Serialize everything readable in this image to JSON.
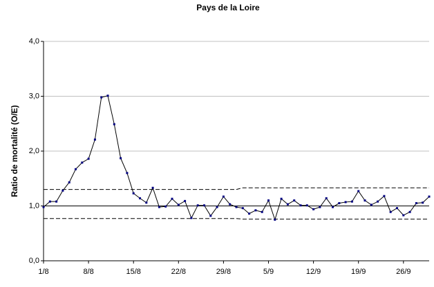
{
  "chart_data": {
    "type": "line",
    "title": "Pays de la Loire",
    "y_label": "Ratio de mortalité (O/E)",
    "categories": [
      "1/8",
      null,
      null,
      null,
      null,
      null,
      null,
      "8/8",
      null,
      null,
      null,
      null,
      null,
      null,
      "15/8",
      null,
      null,
      null,
      null,
      null,
      null,
      "22/8",
      null,
      null,
      null,
      null,
      null,
      null,
      "29/8",
      null,
      null,
      null,
      null,
      null,
      null,
      "5/9",
      null,
      null,
      null,
      null,
      null,
      null,
      "12/9",
      null,
      null,
      null,
      null,
      null,
      null,
      "19/9",
      null,
      null,
      null,
      null,
      null,
      null,
      "26/9",
      null,
      null,
      null,
      null
    ],
    "values": [
      0.98,
      1.08,
      1.08,
      1.28,
      1.43,
      1.67,
      1.79,
      1.86,
      2.21,
      2.98,
      3.01,
      2.49,
      1.87,
      1.6,
      1.23,
      1.14,
      1.06,
      1.33,
      0.98,
      0.99,
      1.13,
      1.02,
      1.09,
      0.78,
      1.01,
      1.01,
      0.82,
      0.98,
      1.17,
      1.03,
      0.98,
      0.96,
      0.86,
      0.92,
      0.89,
      1.1,
      0.75,
      1.13,
      1.03,
      1.1,
      1.01,
      1.01,
      0.94,
      0.98,
      1.14,
      0.98,
      1.05,
      1.07,
      1.08,
      1.27,
      1.1,
      1.02,
      1.08,
      1.18,
      0.89,
      0.96,
      0.83,
      0.89,
      1.05,
      1.06,
      1.17
    ],
    "color": "#000080",
    "upper_limit": [
      1.3,
      1.3,
      1.3,
      1.3,
      1.3,
      1.3,
      1.3,
      1.3,
      1.3,
      1.3,
      1.3,
      1.3,
      1.3,
      1.3,
      1.3,
      1.3,
      1.3,
      1.3,
      1.3,
      1.3,
      1.3,
      1.3,
      1.3,
      1.3,
      1.3,
      1.3,
      1.3,
      1.3,
      1.3,
      1.3,
      1.3,
      1.33,
      1.33,
      1.33,
      1.33,
      1.33,
      1.33,
      1.33,
      1.33,
      1.33,
      1.33,
      1.33,
      1.33,
      1.33,
      1.33,
      1.33,
      1.33,
      1.33,
      1.33,
      1.33,
      1.33,
      1.33,
      1.33,
      1.33,
      1.33,
      1.33,
      1.33,
      1.33,
      1.33,
      1.33,
      1.33
    ],
    "lower_limit": [
      0.77,
      0.77,
      0.77,
      0.77,
      0.77,
      0.77,
      0.77,
      0.77,
      0.77,
      0.77,
      0.77,
      0.77,
      0.77,
      0.77,
      0.77,
      0.77,
      0.77,
      0.77,
      0.77,
      0.77,
      0.77,
      0.77,
      0.77,
      0.77,
      0.77,
      0.77,
      0.77,
      0.77,
      0.77,
      0.77,
      0.77,
      0.76,
      0.76,
      0.76,
      0.76,
      0.76,
      0.76,
      0.76,
      0.76,
      0.76,
      0.76,
      0.76,
      0.76,
      0.76,
      0.76,
      0.76,
      0.76,
      0.76,
      0.76,
      0.76,
      0.76,
      0.76,
      0.76,
      0.76,
      0.76,
      0.76,
      0.76,
      0.76,
      0.76,
      0.76,
      0.76
    ],
    "reference": 1,
    "ylim": [
      0,
      4
    ],
    "yticks": [
      {
        "value": 0,
        "label": "0,0"
      },
      {
        "value": 1,
        "label": "1,0"
      },
      {
        "value": 2,
        "label": "2,0"
      },
      {
        "value": 3,
        "label": "3,0"
      },
      {
        "value": 4,
        "label": "4,0"
      }
    ],
    "grid": true
  }
}
